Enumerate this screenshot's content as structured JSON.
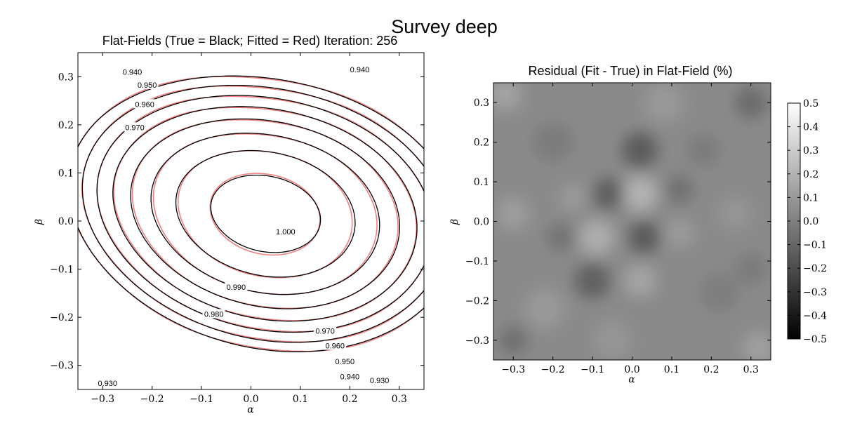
{
  "figure": {
    "suptitle": "Survey deep"
  },
  "chart_data": [
    {
      "type": "contour",
      "title": "Flat-Fields (True = Black; Fitted = Red) Iteration: 256",
      "xlabel": "α",
      "ylabel": "β",
      "xlim": [
        -0.35,
        0.35
      ],
      "ylim": [
        -0.35,
        0.35
      ],
      "xticks": [
        -0.3,
        -0.2,
        -0.1,
        0.0,
        0.1,
        0.2,
        0.3
      ],
      "yticks": [
        -0.3,
        -0.2,
        -0.1,
        0.0,
        0.1,
        0.2,
        0.3
      ],
      "xticklabels": [
        "−0.3",
        "−0.2",
        "−0.1",
        "0.0",
        "0.1",
        "0.2",
        "0.3"
      ],
      "yticklabels": [
        "−0.3",
        "−0.2",
        "−0.1",
        "0.0",
        "0.1",
        "0.2",
        "0.3"
      ],
      "series": [
        {
          "name": "True",
          "color": "#000000"
        },
        {
          "name": "Fitted",
          "color": "#f08080"
        }
      ],
      "levels": [
        0.93,
        0.94,
        0.95,
        0.96,
        0.97,
        0.98,
        0.99,
        1.0
      ],
      "contour_labels": [
        {
          "text": "0.940",
          "x": -0.24,
          "y": 0.31
        },
        {
          "text": "0.950",
          "x": -0.21,
          "y": 0.283
        },
        {
          "text": "0.960",
          "x": -0.215,
          "y": 0.243
        },
        {
          "text": "0.970",
          "x": -0.235,
          "y": 0.195
        },
        {
          "text": "0.940",
          "x": 0.22,
          "y": 0.315
        },
        {
          "text": "1.000",
          "x": 0.07,
          "y": -0.022
        },
        {
          "text": "0.990",
          "x": -0.03,
          "y": -0.137
        },
        {
          "text": "0.980",
          "x": -0.075,
          "y": -0.193
        },
        {
          "text": "0.970",
          "x": 0.15,
          "y": -0.228
        },
        {
          "text": "0.960",
          "x": 0.17,
          "y": -0.259
        },
        {
          "text": "0.950",
          "x": 0.19,
          "y": -0.292
        },
        {
          "text": "0.940",
          "x": 0.2,
          "y": -0.323
        },
        {
          "text": "0.930",
          "x": 0.26,
          "y": -0.331
        },
        {
          "text": "0.930",
          "x": -0.29,
          "y": -0.337
        }
      ]
    },
    {
      "type": "heatmap",
      "title": "Residual (Fit - True) in Flat-Field (%)",
      "xlabel": "α",
      "ylabel": "β",
      "xlim": [
        -0.35,
        0.35
      ],
      "ylim": [
        -0.35,
        0.35
      ],
      "xticks": [
        -0.3,
        -0.2,
        -0.1,
        0.0,
        0.1,
        0.2,
        0.3
      ],
      "yticks": [
        -0.3,
        -0.2,
        -0.1,
        0.0,
        0.1,
        0.2,
        0.3
      ],
      "xticklabels": [
        "−0.3",
        "−0.2",
        "−0.1",
        "0.0",
        "0.1",
        "0.2",
        "0.3"
      ],
      "yticklabels": [
        "−0.3",
        "−0.2",
        "−0.1",
        "0.0",
        "0.1",
        "0.2",
        "0.3"
      ],
      "colormap": "gray",
      "colorbar": {
        "range": [
          -0.5,
          0.5
        ],
        "ticks": [
          0.5,
          0.4,
          0.3,
          0.2,
          0.1,
          0.0,
          -0.1,
          -0.2,
          -0.3,
          -0.4,
          -0.5
        ],
        "ticklabels": [
          "0.5",
          "0.4",
          "0.3",
          "0.2",
          "0.1",
          "0.0",
          "−0.1",
          "−0.2",
          "−0.3",
          "−0.4",
          "−0.5"
        ]
      }
    }
  ]
}
